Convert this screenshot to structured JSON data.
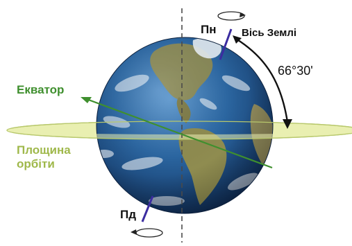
{
  "labels": {
    "equator": "Екватор",
    "orbit_plane": "Площина орбіти",
    "earth_axis": "Вісь Землі",
    "north_pole": "Пн",
    "south_pole": "Пд",
    "tilt_angle": "66°30'"
  },
  "colors": {
    "equator_text": "#3f8f2e",
    "orbit_text": "#9fb84a",
    "axis_text": "#111111",
    "pole_text": "#111111",
    "angle_text": "#111111",
    "orbit_fill": "#e9efb1",
    "orbit_edge": "#b8c86c",
    "axis_line": "#3b2ca0",
    "dash_line": "#4a4a4a",
    "ocean_dark": "#183e6e",
    "ocean_mid": "#2b67a3",
    "land": "#8d8a52"
  },
  "icons": {
    "north_rotation": "rotation-arrow-icon",
    "south_rotation": "rotation-arrow-icon",
    "angle_arc": "curved-arrow-icon"
  }
}
